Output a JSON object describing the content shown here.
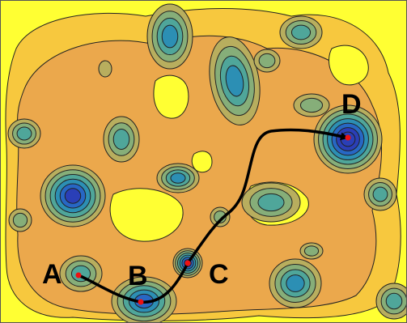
{
  "points": [
    {
      "id": "A",
      "label": "A"
    },
    {
      "id": "B",
      "label": "B"
    },
    {
      "id": "C",
      "label": "C"
    },
    {
      "id": "D",
      "label": "D"
    }
  ],
  "colors": {
    "level0": "#ffff33",
    "level1": "#f7c83e",
    "level2": "#eba84c",
    "level3": "#b8ae5e",
    "level4": "#86ae79",
    "level5": "#4fa69a",
    "level6": "#2c8fb4",
    "level7": "#2767c4",
    "level8": "#2a3fb7",
    "path": "#000000",
    "marker": "#ee1111"
  }
}
